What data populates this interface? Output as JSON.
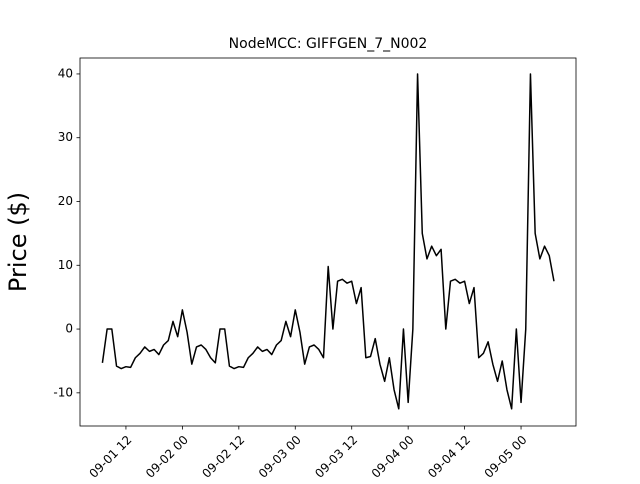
{
  "chart_data": {
    "type": "line",
    "title": "NodeMCC: GIFFGEN_7_N002",
    "y_label": "Price ($)",
    "x": [
      "09-01 07",
      "09-01 08",
      "09-01 09",
      "09-01 10",
      "09-01 11",
      "09-01 12",
      "09-01 13",
      "09-01 14",
      "09-01 15",
      "09-01 16",
      "09-01 17",
      "09-01 18",
      "09-01 19",
      "09-01 20",
      "09-01 21",
      "09-01 22",
      "09-01 23",
      "09-02 00",
      "09-02 01",
      "09-02 02",
      "09-02 03",
      "09-02 04",
      "09-02 05",
      "09-02 06",
      "09-02 07",
      "09-02 08",
      "09-02 09",
      "09-02 10",
      "09-02 11",
      "09-02 12",
      "09-02 13",
      "09-02 14",
      "09-02 15",
      "09-02 16",
      "09-02 17",
      "09-02 18",
      "09-02 19",
      "09-02 20",
      "09-02 21",
      "09-02 22",
      "09-02 23",
      "09-03 00",
      "09-03 01",
      "09-03 02",
      "09-03 03",
      "09-03 04",
      "09-03 05",
      "09-03 06",
      "09-03 07",
      "09-03 08",
      "09-03 09",
      "09-03 10",
      "09-03 11",
      "09-03 12",
      "09-03 13",
      "09-03 14",
      "09-03 15",
      "09-03 16",
      "09-03 17",
      "09-03 18",
      "09-03 19",
      "09-03 20",
      "09-03 21",
      "09-03 22",
      "09-03 23",
      "09-04 00",
      "09-04 01",
      "09-04 02",
      "09-04 03",
      "09-04 04",
      "09-04 05",
      "09-04 06",
      "09-04 07",
      "09-04 08",
      "09-04 09",
      "09-04 10",
      "09-04 11",
      "09-04 12",
      "09-04 13",
      "09-04 14",
      "09-04 15",
      "09-04 16",
      "09-04 17",
      "09-04 18",
      "09-04 19",
      "09-04 20",
      "09-04 21",
      "09-04 22",
      "09-04 23",
      "09-05 00",
      "09-05 01",
      "09-05 02",
      "09-05 03",
      "09-05 04",
      "09-05 05",
      "09-05 06",
      "09-05 07"
    ],
    "series": [
      {
        "name": "GIFFGEN_7_N002",
        "color": "#000000",
        "values": [
          -5.3,
          0,
          0,
          -5.8,
          -6.2,
          -5.9,
          -6,
          -4.5,
          -3.8,
          -2.8,
          -3.5,
          -3.2,
          -4,
          -2.5,
          -1.8,
          1.2,
          -1.2,
          3,
          -0.5,
          -5.5,
          -2.8,
          -2.5,
          -3.2,
          -4.5,
          -5.3,
          0,
          0,
          -5.8,
          -6.2,
          -5.9,
          -6,
          -4.5,
          -3.8,
          -2.8,
          -3.5,
          -3.2,
          -4,
          -2.5,
          -1.8,
          1.2,
          -1.2,
          3,
          -0.5,
          -5.5,
          -2.8,
          -2.5,
          -3.2,
          -4.5,
          9.8,
          0,
          7.5,
          7.8,
          7.2,
          7.5,
          4,
          6.5,
          -4.5,
          -4.3,
          -1.5,
          -5.5,
          -8.2,
          -4.5,
          -9.5,
          -12.5,
          0,
          -11.5,
          0,
          40,
          15,
          11,
          13,
          11.5,
          12.5,
          0,
          7.5,
          7.8,
          7.2,
          7.5,
          4,
          6.5,
          -4.5,
          -3.8,
          -2,
          -5.5,
          -8.2,
          -5,
          -9.5,
          -12.5,
          0,
          -11.5,
          0,
          40,
          15,
          11,
          13,
          11.5,
          7.5
        ]
      }
    ],
    "xlim": [
      "09-01 02:14",
      "09-05 11:41"
    ],
    "xticks": [
      "09-01 12",
      "09-02 00",
      "09-02 12",
      "09-03 00",
      "09-03 12",
      "09-04 00",
      "09-04 12",
      "09-05 00"
    ],
    "ylim": [
      -15.2,
      42.5
    ],
    "yticks": [
      -10,
      0,
      10,
      20,
      30,
      40
    ]
  }
}
